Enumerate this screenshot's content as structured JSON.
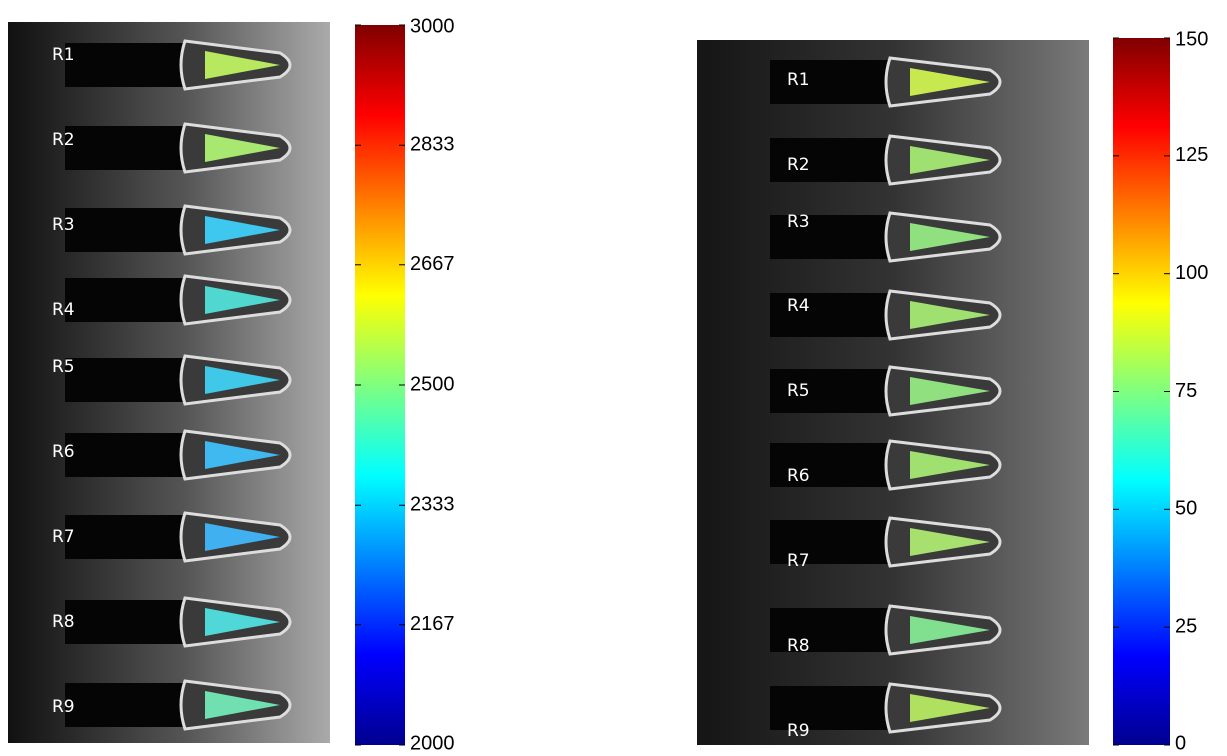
{
  "panels": [
    {
      "labels": [
        "R1",
        "R2",
        "R3",
        "R4",
        "R5",
        "R6",
        "R7",
        "R8",
        "R9"
      ],
      "colorbar_ticks": [
        3000,
        2833,
        2667,
        2500,
        2333,
        2167,
        2000
      ]
    },
    {
      "labels": [
        "R1",
        "R2",
        "R3",
        "R4",
        "R5",
        "R6",
        "R7",
        "R8",
        "R9"
      ],
      "colorbar_ticks": [
        150,
        125,
        100,
        75,
        50,
        25,
        0
      ]
    }
  ]
}
